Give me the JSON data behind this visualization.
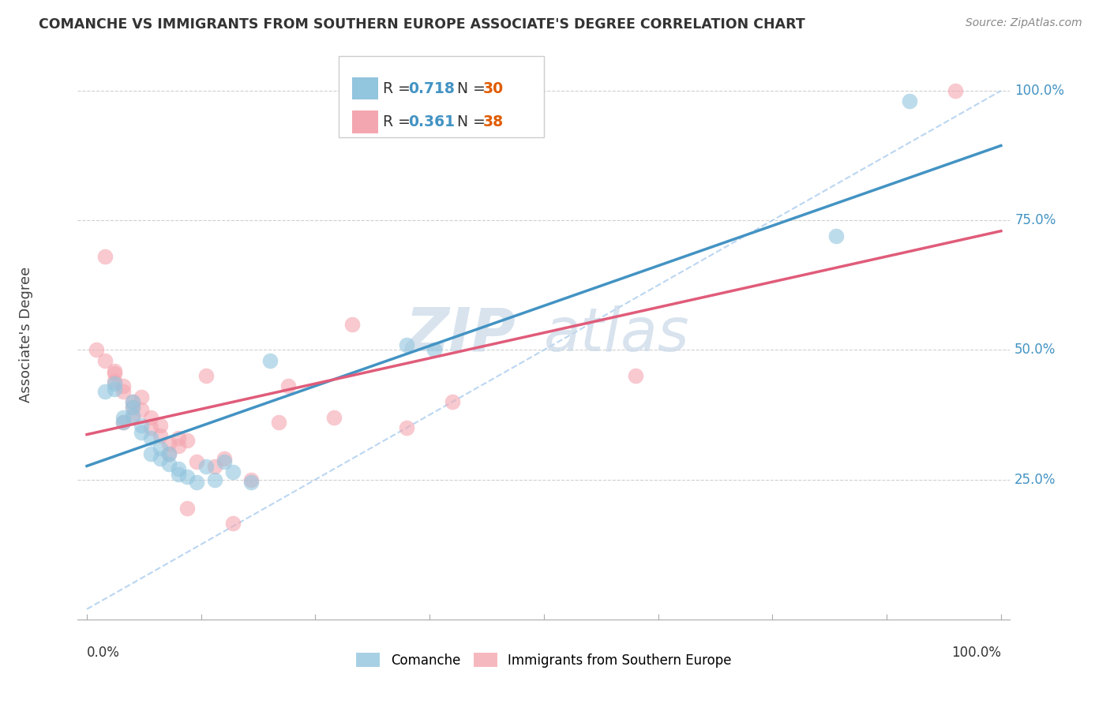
{
  "title": "COMANCHE VS IMMIGRANTS FROM SOUTHERN EUROPE ASSOCIATE'S DEGREE CORRELATION CHART",
  "source": "Source: ZipAtlas.com",
  "ylabel": "Associate's Degree",
  "y_tick_labels": [
    "100.0%",
    "75.0%",
    "50.0%",
    "25.0%"
  ],
  "y_tick_vals": [
    1.0,
    0.75,
    0.5,
    0.25
  ],
  "legend_labels": [
    "Comanche",
    "Immigrants from Southern Europe"
  ],
  "blue_scatter_color": "#92c5de",
  "pink_scatter_color": "#f4a6b0",
  "blue_line_color": "#4393c3",
  "pink_line_color": "#e05c7a",
  "blue_dash_color": "#92c5de",
  "R_blue": 0.718,
  "N_blue": 30,
  "R_pink": 0.361,
  "N_pink": 38,
  "blue_points_x": [
    0.02,
    0.03,
    0.03,
    0.04,
    0.04,
    0.05,
    0.05,
    0.05,
    0.06,
    0.06,
    0.07,
    0.07,
    0.08,
    0.08,
    0.09,
    0.09,
    0.1,
    0.1,
    0.11,
    0.12,
    0.13,
    0.14,
    0.15,
    0.16,
    0.18,
    0.2,
    0.35,
    0.38,
    0.82,
    0.9
  ],
  "blue_points_y": [
    0.42,
    0.425,
    0.435,
    0.36,
    0.37,
    0.39,
    0.4,
    0.375,
    0.34,
    0.355,
    0.3,
    0.33,
    0.29,
    0.31,
    0.28,
    0.3,
    0.26,
    0.27,
    0.255,
    0.245,
    0.275,
    0.25,
    0.285,
    0.265,
    0.245,
    0.48,
    0.51,
    0.5,
    0.72,
    0.98
  ],
  "pink_points_x": [
    0.01,
    0.02,
    0.02,
    0.03,
    0.03,
    0.03,
    0.04,
    0.04,
    0.04,
    0.05,
    0.05,
    0.05,
    0.06,
    0.06,
    0.07,
    0.07,
    0.08,
    0.08,
    0.09,
    0.09,
    0.1,
    0.1,
    0.11,
    0.11,
    0.12,
    0.13,
    0.14,
    0.15,
    0.16,
    0.18,
    0.21,
    0.22,
    0.27,
    0.29,
    0.35,
    0.4,
    0.6,
    0.95
  ],
  "pink_points_y": [
    0.5,
    0.48,
    0.68,
    0.44,
    0.455,
    0.46,
    0.42,
    0.43,
    0.36,
    0.4,
    0.37,
    0.39,
    0.385,
    0.41,
    0.35,
    0.37,
    0.335,
    0.355,
    0.3,
    0.32,
    0.315,
    0.33,
    0.195,
    0.325,
    0.285,
    0.45,
    0.275,
    0.29,
    0.165,
    0.25,
    0.36,
    0.43,
    0.37,
    0.55,
    0.35,
    0.4,
    0.45,
    1.0
  ],
  "watermark_zip": "ZIP",
  "watermark_atlas": "atlas",
  "background_color": "#ffffff",
  "grid_color": "#d0d0d0",
  "right_label_color": "#4393c3",
  "n_color": "#e05c00",
  "legend_r_color": "#4393c3",
  "legend_text_color": "#333333"
}
